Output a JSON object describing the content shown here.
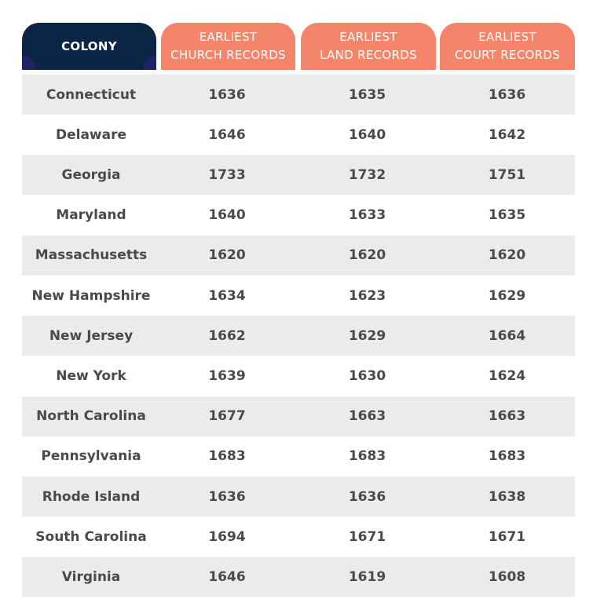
{
  "chart_data": {
    "type": "table",
    "columns": [
      "COLONY",
      "EARLIEST\nCHURCH RECORDS",
      "EARLIEST\nLAND RECORDS",
      "EARLIEST\nCOURT RECORDS"
    ],
    "rows": [
      [
        "Connecticut",
        "1636",
        "1635",
        "1636"
      ],
      [
        "Delaware",
        "1646",
        "1640",
        "1642"
      ],
      [
        "Georgia",
        "1733",
        "1732",
        "1751"
      ],
      [
        "Maryland",
        "1640",
        "1633",
        "1635"
      ],
      [
        "Massachusetts",
        "1620",
        "1620",
        "1620"
      ],
      [
        "New Hampshire",
        "1634",
        "1623",
        "1629"
      ],
      [
        "New Jersey",
        "1662",
        "1629",
        "1664"
      ],
      [
        "New York",
        "1639",
        "1630",
        "1624"
      ],
      [
        "North Carolina",
        "1677",
        "1663",
        "1663"
      ],
      [
        "Pennsylvania",
        "1683",
        "1683",
        "1683"
      ],
      [
        "Rhode Island",
        "1636",
        "1636",
        "1638"
      ],
      [
        "South Carolina",
        "1694",
        "1671",
        "1671"
      ],
      [
        "Virginia",
        "1646",
        "1619",
        "1608"
      ]
    ],
    "colors": {
      "colony_header": "#0b2545",
      "records_header": "#f4856a",
      "shaded_row": "#ebebeb",
      "text": "#4a4a4a"
    }
  }
}
